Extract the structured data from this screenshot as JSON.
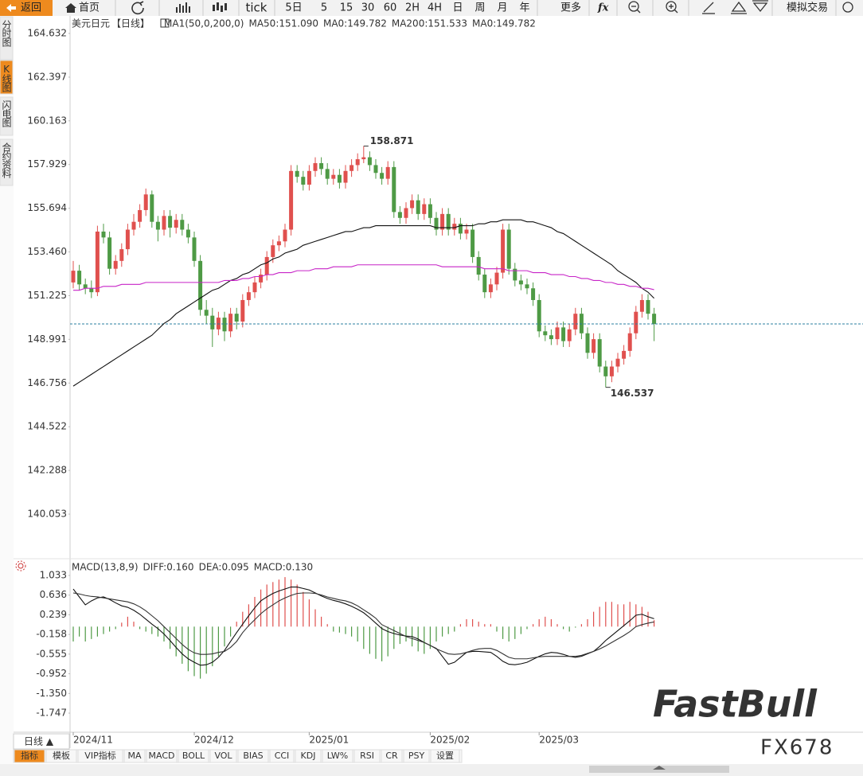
{
  "toolbar": {
    "back": "返回",
    "home": "首页",
    "items": [
      "tick",
      "5日",
      "5",
      "15",
      "30",
      "60",
      "2H",
      "4H",
      "日",
      "周",
      "月",
      "年"
    ],
    "more": "更多",
    "fx": "fx",
    "trade": "模拟交易"
  },
  "side_tabs": [
    "分时图",
    "K线图",
    "闪电图",
    "合约资料"
  ],
  "chart_data": {
    "type": "candlestick",
    "symbol": "美元日元",
    "period": "【日线】",
    "indicator": "MA1(50,0,200,0)",
    "up_color": "#e0504e",
    "down_color": "#4e9a45",
    "ylim": [
      137.855,
      165.527
    ],
    "yticks": [
      164.632,
      162.397,
      160.163,
      157.929,
      155.694,
      {
        "value": 153.46,
        "label": "153.460"
      },
      151.225,
      148.991,
      146.756,
      144.522,
      142.288,
      140.053
    ],
    "categories": [
      "2024/11",
      null,
      null,
      null,
      null,
      null,
      null,
      null,
      null,
      null,
      null,
      null,
      null,
      null,
      null,
      null,
      null,
      null,
      null,
      null,
      "2024/12",
      null,
      null,
      null,
      null,
      null,
      null,
      null,
      null,
      null,
      null,
      null,
      null,
      null,
      null,
      null,
      null,
      null,
      null,
      "2025/01",
      null,
      null,
      null,
      null,
      null,
      null,
      null,
      null,
      null,
      null,
      null,
      null,
      null,
      null,
      null,
      null,
      null,
      null,
      null,
      "2025/02",
      null,
      null,
      null,
      null,
      null,
      null,
      null,
      null,
      null,
      null,
      null,
      null,
      null,
      null,
      null,
      null,
      null,
      "2025/03",
      null,
      null,
      null,
      null,
      null,
      null,
      null,
      null,
      null,
      null,
      null,
      null,
      null,
      null,
      null,
      null,
      null,
      null,
      null
    ],
    "ohlc": [
      [
        151.9,
        153.0,
        151.6,
        152.5
      ],
      [
        152.5,
        152.8,
        151.5,
        151.8
      ],
      [
        151.8,
        152.1,
        151.3,
        151.6
      ],
      [
        151.6,
        152.0,
        151.1,
        151.4
      ],
      [
        151.4,
        154.8,
        151.2,
        154.5
      ],
      [
        154.5,
        154.9,
        153.9,
        154.2
      ],
      [
        154.2,
        154.5,
        152.3,
        152.6
      ],
      [
        152.6,
        153.3,
        152.3,
        153.0
      ],
      [
        153.0,
        153.9,
        152.7,
        153.6
      ],
      [
        153.6,
        154.9,
        153.3,
        154.6
      ],
      [
        154.6,
        155.4,
        154.3,
        155.0
      ],
      [
        155.0,
        155.9,
        154.7,
        155.6
      ],
      [
        155.6,
        156.7,
        155.3,
        156.4
      ],
      [
        156.4,
        156.6,
        154.7,
        155.0
      ],
      [
        155.0,
        155.3,
        154.0,
        154.6
      ],
      [
        154.6,
        155.6,
        154.3,
        155.3
      ],
      [
        155.3,
        155.6,
        154.2,
        154.7
      ],
      [
        154.7,
        155.4,
        154.4,
        155.1
      ],
      [
        155.1,
        155.4,
        154.3,
        154.6
      ],
      [
        154.6,
        154.9,
        153.9,
        154.2
      ],
      [
        154.2,
        154.5,
        152.7,
        153.0
      ],
      [
        153.0,
        153.3,
        150.2,
        150.5
      ],
      [
        150.5,
        151.0,
        149.8,
        150.2
      ],
      [
        150.2,
        150.6,
        148.6,
        149.5
      ],
      [
        149.5,
        150.4,
        149.2,
        150.1
      ],
      [
        150.1,
        150.4,
        148.9,
        149.4
      ],
      [
        149.4,
        150.6,
        149.1,
        150.3
      ],
      [
        150.3,
        150.6,
        149.5,
        149.9
      ],
      [
        149.9,
        151.3,
        149.6,
        151.0
      ],
      [
        151.0,
        151.7,
        150.7,
        151.4
      ],
      [
        151.4,
        152.2,
        151.1,
        151.9
      ],
      [
        151.9,
        152.6,
        151.6,
        152.3
      ],
      [
        152.3,
        153.5,
        152.0,
        153.2
      ],
      [
        153.2,
        154.1,
        152.9,
        153.8
      ],
      [
        153.8,
        154.3,
        153.5,
        154.0
      ],
      [
        154.0,
        154.9,
        153.7,
        154.6
      ],
      [
        154.6,
        157.9,
        154.3,
        157.6
      ],
      [
        157.6,
        157.9,
        157.0,
        157.3
      ],
      [
        157.3,
        157.6,
        156.6,
        156.9
      ],
      [
        156.9,
        157.9,
        156.6,
        157.6
      ],
      [
        157.6,
        158.3,
        157.3,
        158.0
      ],
      [
        158.0,
        158.3,
        157.4,
        157.7
      ],
      [
        157.7,
        158.0,
        156.9,
        157.2
      ],
      [
        157.2,
        157.7,
        156.9,
        157.4
      ],
      [
        157.4,
        157.7,
        156.7,
        157.0
      ],
      [
        157.0,
        157.9,
        156.7,
        157.6
      ],
      [
        157.6,
        158.2,
        157.3,
        157.9
      ],
      [
        157.9,
        158.5,
        157.6,
        158.2
      ],
      [
        158.2,
        158.871,
        158.0,
        158.3
      ],
      [
        158.3,
        158.6,
        157.6,
        157.9
      ],
      [
        157.9,
        158.2,
        157.2,
        157.5
      ],
      [
        157.5,
        157.8,
        156.9,
        157.2
      ],
      [
        157.2,
        158.1,
        156.9,
        157.8
      ],
      [
        157.8,
        158.1,
        155.2,
        155.5
      ],
      [
        155.5,
        155.8,
        154.9,
        155.2
      ],
      [
        155.2,
        156.0,
        154.9,
        155.7
      ],
      [
        155.7,
        156.4,
        155.4,
        156.1
      ],
      [
        156.1,
        156.4,
        155.1,
        155.4
      ],
      [
        155.4,
        156.2,
        155.1,
        155.9
      ],
      [
        155.9,
        156.2,
        154.9,
        155.2
      ],
      [
        155.2,
        155.5,
        154.3,
        154.6
      ],
      [
        154.6,
        155.7,
        154.3,
        155.4
      ],
      [
        155.4,
        155.7,
        154.3,
        154.6
      ],
      [
        154.6,
        155.2,
        154.3,
        154.9
      ],
      [
        154.9,
        155.2,
        154.1,
        154.4
      ],
      [
        154.4,
        154.9,
        154.1,
        154.6
      ],
      [
        154.6,
        154.9,
        152.9,
        153.2
      ],
      [
        153.2,
        153.5,
        152.0,
        152.3
      ],
      [
        152.3,
        152.6,
        151.1,
        151.4
      ],
      [
        151.4,
        152.1,
        151.1,
        151.8
      ],
      [
        151.8,
        152.7,
        151.5,
        152.4
      ],
      [
        152.4,
        154.9,
        152.1,
        154.6
      ],
      [
        154.6,
        154.9,
        152.3,
        152.6
      ],
      [
        152.6,
        152.9,
        151.7,
        152.0
      ],
      [
        152.0,
        152.3,
        151.5,
        151.8
      ],
      [
        151.8,
        152.1,
        151.3,
        151.6
      ],
      [
        151.6,
        151.9,
        150.7,
        151.0
      ],
      [
        151.0,
        151.3,
        149.1,
        149.4
      ],
      [
        149.4,
        149.7,
        148.9,
        149.2
      ],
      [
        149.2,
        149.5,
        148.7,
        149.0
      ],
      [
        149.0,
        149.9,
        148.7,
        149.6
      ],
      [
        149.6,
        149.9,
        148.6,
        148.9
      ],
      [
        148.9,
        149.8,
        148.6,
        149.5
      ],
      [
        149.5,
        150.6,
        149.2,
        150.3
      ],
      [
        150.3,
        150.6,
        149.0,
        149.3
      ],
      [
        149.3,
        149.6,
        148.0,
        148.3
      ],
      [
        148.3,
        149.3,
        148.0,
        149.0
      ],
      [
        149.0,
        149.3,
        147.3,
        147.6
      ],
      [
        147.6,
        147.9,
        146.537,
        147.1
      ],
      [
        147.1,
        147.9,
        146.8,
        147.6
      ],
      [
        147.6,
        148.3,
        147.3,
        148.0
      ],
      [
        148.0,
        148.7,
        147.7,
        148.4
      ],
      [
        148.4,
        149.6,
        148.1,
        149.3
      ],
      [
        149.3,
        150.7,
        149.0,
        150.4
      ],
      [
        150.4,
        151.3,
        150.1,
        151.0
      ],
      [
        151.0,
        151.3,
        150.0,
        150.3
      ],
      [
        150.3,
        150.6,
        148.9,
        149.78
      ]
    ],
    "series": [
      {
        "label": "MA50:151.090",
        "color": "#111111",
        "values": [
          146.6,
          146.8,
          147.0,
          147.2,
          147.4,
          147.6,
          147.8,
          148.0,
          148.2,
          148.4,
          148.6,
          148.8,
          149.0,
          149.2,
          149.5,
          149.8,
          150.0,
          150.3,
          150.5,
          150.7,
          150.9,
          151.1,
          151.3,
          151.5,
          151.6,
          151.8,
          152.0,
          152.1,
          152.3,
          152.4,
          152.6,
          152.8,
          152.9,
          153.1,
          153.2,
          153.4,
          153.5,
          153.6,
          153.8,
          153.9,
          154.0,
          154.1,
          154.2,
          154.3,
          154.4,
          154.5,
          154.5,
          154.6,
          154.7,
          154.7,
          154.8,
          154.8,
          154.8,
          154.8,
          154.8,
          154.8,
          154.8,
          154.8,
          154.8,
          154.8,
          154.7,
          154.7,
          154.7,
          154.7,
          154.8,
          154.8,
          154.8,
          154.9,
          154.9,
          155.0,
          155.0,
          155.1,
          155.1,
          155.1,
          155.1,
          155.0,
          155.0,
          154.9,
          154.8,
          154.7,
          154.5,
          154.4,
          154.2,
          154.0,
          153.8,
          153.6,
          153.4,
          153.2,
          153.0,
          152.8,
          152.5,
          152.3,
          152.1,
          151.9,
          151.6,
          151.4,
          151.09
        ]
      },
      {
        "label": "MA200:151.533",
        "color": "#c724c7",
        "values": [
          151.5,
          151.5,
          151.6,
          151.6,
          151.6,
          151.7,
          151.7,
          151.7,
          151.8,
          151.8,
          151.8,
          151.8,
          151.9,
          151.9,
          151.9,
          151.9,
          151.9,
          151.9,
          151.9,
          151.9,
          151.9,
          151.9,
          151.9,
          151.9,
          151.9,
          152.0,
          152.0,
          152.0,
          152.1,
          152.1,
          152.2,
          152.2,
          152.3,
          152.3,
          152.4,
          152.4,
          152.4,
          152.5,
          152.5,
          152.5,
          152.6,
          152.6,
          152.6,
          152.7,
          152.7,
          152.7,
          152.7,
          152.8,
          152.8,
          152.8,
          152.8,
          152.8,
          152.8,
          152.8,
          152.8,
          152.8,
          152.8,
          152.8,
          152.8,
          152.8,
          152.8,
          152.7,
          152.7,
          152.7,
          152.7,
          152.7,
          152.7,
          152.7,
          152.6,
          152.6,
          152.6,
          152.6,
          152.5,
          152.5,
          152.5,
          152.5,
          152.4,
          152.4,
          152.4,
          152.3,
          152.3,
          152.3,
          152.2,
          152.2,
          152.1,
          152.1,
          152.0,
          152.0,
          151.9,
          151.9,
          151.8,
          151.8,
          151.7,
          151.7,
          151.6,
          151.6,
          151.53
        ]
      }
    ],
    "legend_extra": [
      {
        "text": "MA0:149.782",
        "color": "#222222",
        "after": 0
      },
      {
        "text": "MA0:149.782",
        "color": "#e98a1a",
        "after": 1
      }
    ],
    "last_line_color": "#2a7fa0",
    "macd": {
      "title": "MACD(13,8,9)",
      "diff_label": "DIFF:0.160",
      "dea_label": "DEA:0.095",
      "hist_label": "MACD:0.130",
      "hist_label_color": "#c724c7",
      "ylim": [
        -2.052,
        1.355
      ],
      "yticks": [
        1.033,
        0.636,
        0.239,
        -0.158,
        -0.555,
        -0.952,
        {
          "value": -1.35,
          "label": "-1.350"
        },
        -1.747
      ],
      "diff": [
        0.76,
        0.6,
        0.44,
        0.52,
        0.58,
        0.6,
        0.55,
        0.48,
        0.42,
        0.39,
        0.33,
        0.25,
        0.15,
        0.05,
        -0.04,
        -0.15,
        -0.28,
        -0.42,
        -0.55,
        -0.65,
        -0.72,
        -0.78,
        -0.77,
        -0.72,
        -0.62,
        -0.48,
        -0.3,
        -0.12,
        0.05,
        0.22,
        0.38,
        0.52,
        0.6,
        0.67,
        0.72,
        0.76,
        0.8,
        0.8,
        0.77,
        0.74,
        0.68,
        0.62,
        0.57,
        0.53,
        0.5,
        0.46,
        0.41,
        0.35,
        0.28,
        0.18,
        0.07,
        -0.04,
        -0.1,
        -0.14,
        -0.17,
        -0.19,
        -0.2,
        -0.25,
        -0.32,
        -0.38,
        -0.44,
        -0.6,
        -0.76,
        -0.72,
        -0.62,
        -0.52,
        -0.5,
        -0.5,
        -0.51,
        -0.52,
        -0.6,
        -0.7,
        -0.76,
        -0.77,
        -0.75,
        -0.72,
        -0.66,
        -0.6,
        -0.55,
        -0.52,
        -0.53,
        -0.56,
        -0.6,
        -0.62,
        -0.6,
        -0.55,
        -0.5,
        -0.4,
        -0.28,
        -0.18,
        -0.08,
        0.02,
        0.12,
        0.23,
        0.25,
        0.2,
        0.16
      ],
      "dea": [
        0.68,
        0.66,
        0.63,
        0.61,
        0.6,
        0.58,
        0.56,
        0.54,
        0.52,
        0.5,
        0.46,
        0.4,
        0.32,
        0.22,
        0.12,
        0,
        -0.12,
        -0.24,
        -0.36,
        -0.46,
        -0.53,
        -0.56,
        -0.56,
        -0.55,
        -0.52,
        -0.5,
        -0.42,
        -0.3,
        -0.12,
        0.02,
        0.14,
        0.26,
        0.36,
        0.44,
        0.52,
        0.58,
        0.63,
        0.67,
        0.68,
        0.68,
        0.67,
        0.64,
        0.6,
        0.57,
        0.54,
        0.52,
        0.48,
        0.42,
        0.34,
        0.26,
        0.17,
        0.04,
        -0.02,
        -0.08,
        -0.14,
        -0.2,
        -0.24,
        -0.28,
        -0.32,
        -0.38,
        -0.45,
        -0.5,
        -0.55,
        -0.56,
        -0.55,
        -0.52,
        -0.48,
        -0.45,
        -0.44,
        -0.44,
        -0.48,
        -0.55,
        -0.62,
        -0.65,
        -0.65,
        -0.65,
        -0.63,
        -0.61,
        -0.6,
        -0.6,
        -0.6,
        -0.6,
        -0.6,
        -0.6,
        -0.58,
        -0.54,
        -0.5,
        -0.45,
        -0.39,
        -0.32,
        -0.25,
        -0.18,
        -0.1,
        0,
        0.04,
        0.07,
        0.095
      ],
      "hist": [
        -0.3,
        -0.2,
        -0.3,
        -0.25,
        -0.2,
        -0.15,
        -0.1,
        -0.05,
        0.08,
        0.2,
        0.1,
        -0.05,
        -0.1,
        -0.15,
        -0.2,
        -0.3,
        -0.45,
        -0.6,
        -0.75,
        -0.9,
        -1.0,
        -1.05,
        -0.95,
        -0.8,
        -0.6,
        -0.4,
        -0.2,
        0.1,
        0.3,
        0.45,
        0.6,
        0.75,
        0.85,
        0.9,
        0.95,
        1.0,
        0.95,
        0.85,
        0.7,
        0.55,
        0.35,
        0.2,
        0.05,
        -0.1,
        -0.12,
        -0.15,
        -0.2,
        -0.3,
        -0.45,
        -0.55,
        -0.65,
        -0.7,
        -0.6,
        -0.45,
        -0.35,
        -0.3,
        -0.4,
        -0.5,
        -0.55,
        -0.45,
        -0.3,
        -0.2,
        -0.15,
        -0.1,
        0.05,
        0.15,
        0.15,
        0.1,
        0.05,
        0.05,
        -0.1,
        -0.25,
        -0.3,
        -0.25,
        -0.15,
        -0.05,
        0.05,
        0.15,
        0.2,
        0.15,
        0.05,
        -0.05,
        -0.1,
        -0.02,
        0.05,
        0.15,
        0.3,
        0.4,
        0.5,
        0.5,
        0.45,
        0.45,
        0.5,
        0.45,
        0.4,
        0.3,
        0.13
      ]
    }
  },
  "period_button": "日线 ▲",
  "indicator_tabs": [
    "指标",
    "模板",
    "VIP指标",
    "MA",
    "MACD",
    "BOLL",
    "VOL",
    "BIAS",
    "CCI",
    "KDJ",
    "LW%",
    "RSI",
    "CR",
    "PSY",
    "设置"
  ],
  "watermarks": [
    "FastBull",
    "FX678"
  ]
}
